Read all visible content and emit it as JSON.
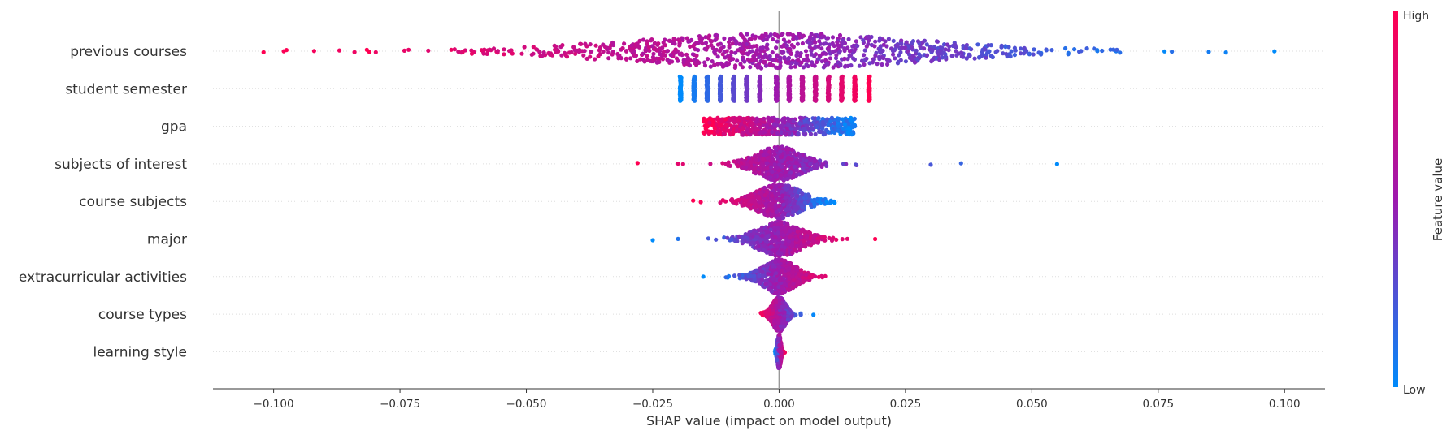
{
  "chart_data": {
    "type": "scatter",
    "subtype": "shap-beeswarm",
    "xlabel": "SHAP value (impact on model output)",
    "xlim": [
      -0.112,
      0.108
    ],
    "xticks": [
      -0.1,
      -0.075,
      -0.05,
      -0.025,
      0.0,
      0.025,
      0.05,
      0.075,
      0.1
    ],
    "xtick_labels": [
      "−0.100",
      "−0.075",
      "−0.050",
      "−0.025",
      "0.000",
      "0.025",
      "0.050",
      "0.075",
      "0.100"
    ],
    "grid": "horizontal dotted per feature row",
    "zero_line": true,
    "colorbar": {
      "title": "Feature value",
      "high_label": "High",
      "low_label": "Low",
      "high_color": "#ff0052",
      "low_color": "#008bfb"
    },
    "features": [
      {
        "name": "previous courses",
        "min": -0.102,
        "max": 0.098,
        "spread": 0.028,
        "high_side": "negative",
        "sparse": [
          -0.102,
          -0.098,
          -0.092,
          -0.087,
          -0.084,
          0.085,
          0.098
        ]
      },
      {
        "name": "student semester",
        "min": -0.02,
        "max": 0.018,
        "discrete": true,
        "levels": [
          -0.0195,
          -0.0168,
          -0.0142,
          -0.0116,
          -0.009,
          -0.0064,
          -0.0038,
          -0.0005,
          0.002,
          0.0046,
          0.0072,
          0.0098,
          0.0124,
          0.015,
          0.0178
        ]
      },
      {
        "name": "gpa",
        "min": -0.015,
        "max": 0.015,
        "spread": 0.006,
        "high_side": "negative",
        "uniform": true
      },
      {
        "name": "subjects of interest",
        "min": -0.028,
        "max": 0.055,
        "spread": 0.004,
        "high_side": "negative",
        "sparse": [
          -0.028,
          -0.02,
          -0.019,
          0.03,
          0.036,
          0.055
        ]
      },
      {
        "name": "course subjects",
        "min": -0.017,
        "max": 0.011,
        "spread": 0.004,
        "high_side": "negative",
        "sparse": [
          -0.017,
          -0.0155
        ]
      },
      {
        "name": "major",
        "min": -0.025,
        "max": 0.019,
        "spread": 0.004,
        "high_side": "positive",
        "sparse": [
          -0.025,
          -0.02,
          -0.014,
          -0.0125,
          0.0125,
          0.0135,
          0.019
        ]
      },
      {
        "name": "extracurricular activities",
        "min": -0.015,
        "max": 0.013,
        "spread": 0.003,
        "high_side": "positive",
        "sparse": [
          -0.015,
          -0.0105
        ]
      },
      {
        "name": "course types",
        "min": -0.004,
        "max": 0.007,
        "spread": 0.0012,
        "high_side": "negative",
        "sparse": [
          0.0068
        ]
      },
      {
        "name": "learning style",
        "min": -0.0008,
        "max": 0.0012,
        "spread": 0.0003,
        "high_side": "positive"
      }
    ]
  }
}
